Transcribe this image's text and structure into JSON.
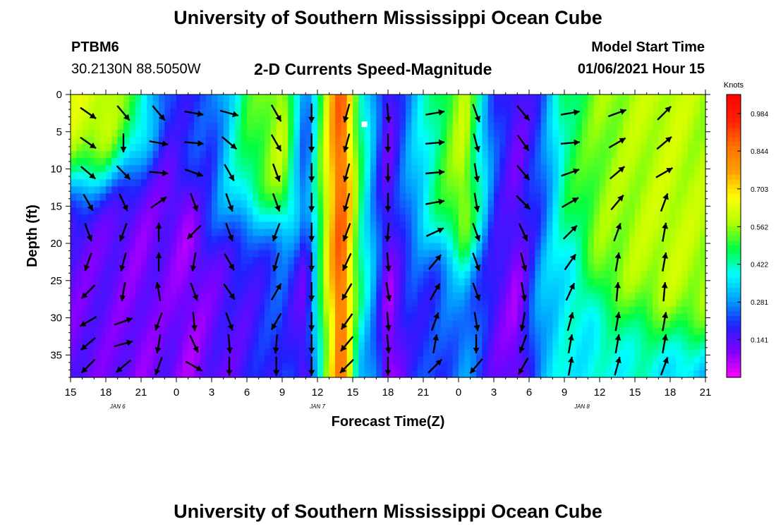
{
  "header": {
    "title": "University of Southern Mississippi Ocean Cube",
    "station_id": "PTBM6",
    "station_coords": "30.2130N 88.5050W",
    "subtitle": "2-D Currents Speed-Magnitude",
    "model_start_label": "Model Start Time",
    "model_start_value": "01/06/2021 Hour 15"
  },
  "footer": {
    "title": "University of Southern Mississippi Ocean Cube"
  },
  "colorbar": {
    "unit_label": "Knots",
    "ticks": [
      "0.984",
      "0.844",
      "0.703",
      "0.562",
      "0.422",
      "0.281",
      "0.141"
    ],
    "tick_values": [
      0.984,
      0.844,
      0.703,
      0.562,
      0.422,
      0.281,
      0.141
    ],
    "min": 0.0,
    "max": 1.055,
    "colors": [
      "#ff00ff",
      "#8000ff",
      "#2020ff",
      "#00a0ff",
      "#00ffff",
      "#00ff40",
      "#b0ff00",
      "#ffff00",
      "#ffa000",
      "#ff7000",
      "#ff2000",
      "#ff0000"
    ]
  },
  "chart_data": {
    "type": "heatmap",
    "title": "2-D Currents Speed-Magnitude",
    "xlabel": "Forecast Time(Z)",
    "ylabel": "Depth (ft)",
    "value_unit": "Knots",
    "x_tick_labels": [
      "15",
      "18",
      "21",
      "0",
      "3",
      "6",
      "9",
      "12",
      "15",
      "18",
      "21",
      "0",
      "3",
      "6",
      "9",
      "12",
      "15",
      "18",
      "21"
    ],
    "xlim_hours": [
      0,
      54
    ],
    "x_tick_step_hours": 3,
    "date_labels": [
      {
        "label": "JAN 6",
        "hour": 4
      },
      {
        "label": "JAN 7",
        "hour": 21
      },
      {
        "label": "JAN 8",
        "hour": 43.5
      }
    ],
    "y_tick_labels": [
      "0",
      "5",
      "10",
      "15",
      "20",
      "25",
      "30",
      "35"
    ],
    "y_tick_values": [
      0,
      5,
      10,
      15,
      20,
      25,
      30,
      35
    ],
    "ylim_ft": [
      0,
      38
    ],
    "speed_profile": [
      {
        "hour": 0,
        "surface": 0.62,
        "bottom": 0.12,
        "transition_ft": 12
      },
      {
        "hour": 3,
        "surface": 0.62,
        "bottom": 0.12,
        "transition_ft": 11
      },
      {
        "hour": 6,
        "surface": 0.45,
        "bottom": 0.1,
        "transition_ft": 9
      },
      {
        "hour": 8,
        "surface": 0.2,
        "bottom": 0.12,
        "transition_ft": 8
      },
      {
        "hour": 10,
        "surface": 0.2,
        "bottom": 0.08,
        "transition_ft": 12
      },
      {
        "hour": 12,
        "surface": 0.22,
        "bottom": 0.12,
        "transition_ft": 20
      },
      {
        "hour": 15,
        "surface": 0.48,
        "bottom": 0.16,
        "transition_ft": 16
      },
      {
        "hour": 18,
        "surface": 0.6,
        "bottom": 0.22,
        "transition_ft": 17
      },
      {
        "hour": 20,
        "surface": 0.22,
        "bottom": 0.12,
        "transition_ft": 20
      },
      {
        "hour": 23,
        "surface": 0.92,
        "bottom": 0.88,
        "transition_ft": 30
      },
      {
        "hour": 24.5,
        "surface": 0.48,
        "bottom": 0.35,
        "transition_ft": 30
      },
      {
        "hour": 26,
        "surface": 0.25,
        "bottom": 0.25,
        "transition_ft": 30
      },
      {
        "hour": 27,
        "surface": 0.12,
        "bottom": 0.05,
        "transition_ft": 25
      },
      {
        "hour": 29,
        "surface": 0.3,
        "bottom": 0.2,
        "transition_ft": 20
      },
      {
        "hour": 31,
        "surface": 0.45,
        "bottom": 0.2,
        "transition_ft": 20
      },
      {
        "hour": 33.5,
        "surface": 0.6,
        "bottom": 0.28,
        "transition_ft": 22
      },
      {
        "hour": 36,
        "surface": 0.22,
        "bottom": 0.14,
        "transition_ft": 20
      },
      {
        "hour": 38,
        "surface": 0.12,
        "bottom": 0.08,
        "transition_ft": 20
      },
      {
        "hour": 40,
        "surface": 0.22,
        "bottom": 0.3,
        "transition_ft": 20
      },
      {
        "hour": 42,
        "surface": 0.45,
        "bottom": 0.38,
        "transition_ft": 18
      },
      {
        "hour": 45,
        "surface": 0.55,
        "bottom": 0.38,
        "transition_ft": 28
      },
      {
        "hour": 48,
        "surface": 0.58,
        "bottom": 0.4,
        "transition_ft": 30
      },
      {
        "hour": 51,
        "surface": 0.6,
        "bottom": 0.35,
        "transition_ft": 32
      },
      {
        "hour": 54,
        "surface": 0.58,
        "bottom": 0.3,
        "transition_ft": 33
      }
    ],
    "vector_columns": [
      {
        "hour": 1.5,
        "angles": [
          125,
          125,
          130,
          150,
          160,
          200,
          225,
          240,
          230,
          225
        ]
      },
      {
        "hour": 4.5,
        "angles": [
          140,
          180,
          135,
          155,
          200,
          195,
          190,
          70,
          75,
          230
        ]
      },
      {
        "hour": 7.5,
        "angles": [
          140,
          100,
          95,
          55,
          0,
          0,
          350,
          200,
          190,
          200
        ]
      },
      {
        "hour": 10.5,
        "angles": [
          100,
          95,
          110,
          160,
          225,
          190,
          160,
          175,
          155,
          120
        ]
      },
      {
        "hour": 13.5,
        "angles": [
          105,
          130,
          150,
          160,
          160,
          150,
          145,
          160,
          175,
          180
        ]
      },
      {
        "hour": 17.5,
        "angles": [
          150,
          150,
          160,
          160,
          200,
          195,
          30,
          210,
          185,
          180
        ]
      },
      {
        "hour": 20.5,
        "angles": [
          180,
          180,
          180,
          180,
          180,
          180,
          180,
          180,
          180,
          180
        ]
      },
      {
        "hour": 23.5,
        "angles": [
          195,
          195,
          195,
          195,
          200,
          205,
          210,
          215,
          220,
          225
        ]
      },
      {
        "hour": 27,
        "angles": [
          175,
          180,
          180,
          180,
          185,
          175,
          170,
          175,
          175,
          180
        ]
      },
      {
        "hour": 31,
        "angles": [
          80,
          85,
          85,
          80,
          65,
          40,
          30,
          20,
          10,
          45
        ]
      },
      {
        "hour": 34.5,
        "angles": [
          160,
          165,
          170,
          170,
          160,
          160,
          160,
          170,
          180,
          220
        ]
      },
      {
        "hour": 38.5,
        "angles": [
          140,
          145,
          140,
          135,
          155,
          165,
          170,
          190,
          200,
          210
        ]
      },
      {
        "hour": 42.5,
        "angles": [
          80,
          85,
          70,
          60,
          45,
          35,
          25,
          15,
          10,
          10
        ]
      },
      {
        "hour": 46.5,
        "angles": [
          70,
          60,
          50,
          40,
          20,
          10,
          5,
          10,
          10,
          15
        ]
      },
      {
        "hour": 50.5,
        "angles": [
          45,
          50,
          60,
          20,
          10,
          10,
          5,
          10,
          10,
          20
        ]
      }
    ],
    "marker": {
      "hour": 25,
      "depth_ft": 4
    }
  }
}
